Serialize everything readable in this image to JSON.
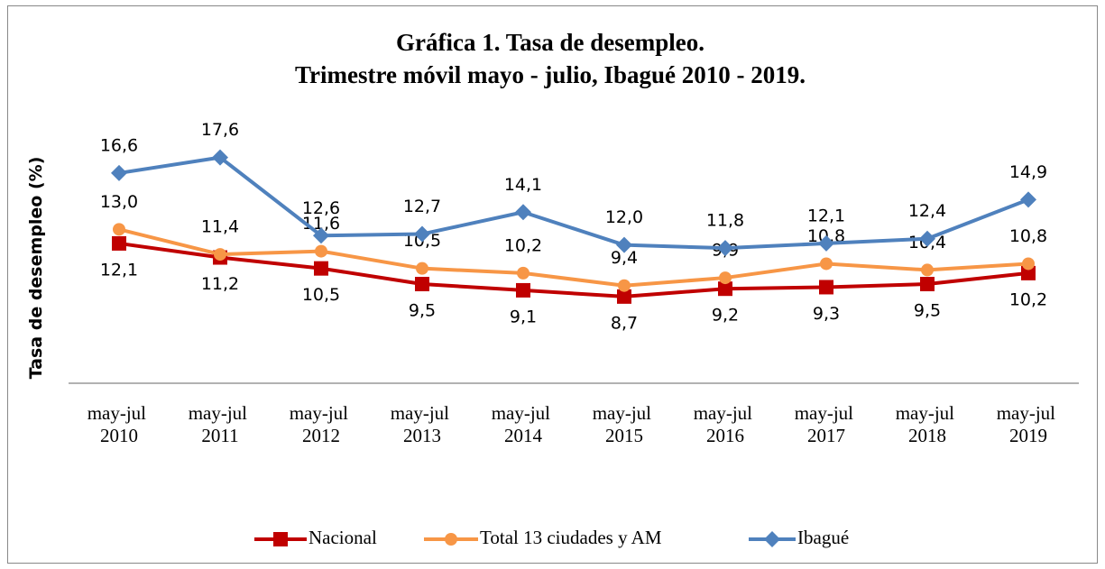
{
  "chart_data": {
    "type": "line",
    "title": [
      "Gráfica 1. Tasa de desempleo.",
      "Trimestre móvil mayo - julio, Ibagué 2010 - 2019."
    ],
    "y_label": "Tasa de desempleo (%)",
    "categories": [
      "may-jul 2010",
      "may-jul 2011",
      "may-jul 2012",
      "may-jul 2013",
      "may-jul 2014",
      "may-jul 2015",
      "may-jul 2016",
      "may-jul 2017",
      "may-jul 2018",
      "may-jul 2019"
    ],
    "ylim": [
      2,
      20
    ],
    "series": [
      {
        "name": "Nacional",
        "color": "#c00000",
        "marker": "square",
        "label_position": "below",
        "values": [
          12.1,
          11.2,
          10.5,
          9.5,
          9.1,
          8.7,
          9.2,
          9.3,
          9.5,
          10.2
        ],
        "value_labels": [
          "12,1",
          "11,2",
          "10,5",
          "9,5",
          "9,1",
          "8,7",
          "9,2",
          "9,3",
          "9,5",
          "10,2"
        ]
      },
      {
        "name": "Total 13 ciudades y AM",
        "color": "#f79646",
        "marker": "circle",
        "label_position": "above",
        "values": [
          13.0,
          11.4,
          11.6,
          10.5,
          10.2,
          9.4,
          9.9,
          10.8,
          10.4,
          10.8
        ],
        "value_labels": [
          "13,0",
          "11,4",
          "11,6",
          "10,5",
          "10,2",
          "9,4",
          "9,9",
          "10,8",
          "10,4",
          "10,8"
        ]
      },
      {
        "name": "Ibagué",
        "color": "#4f81bd",
        "marker": "diamond",
        "label_position": "above",
        "values": [
          16.6,
          17.6,
          12.6,
          12.7,
          14.1,
          12.0,
          11.8,
          12.1,
          12.4,
          14.9
        ],
        "value_labels": [
          "16,6",
          "17,6",
          "12,6",
          "12,7",
          "14,1",
          "12,0",
          "11,8",
          "12,1",
          "12,4",
          "14,9"
        ]
      }
    ],
    "legend": "bottom"
  }
}
